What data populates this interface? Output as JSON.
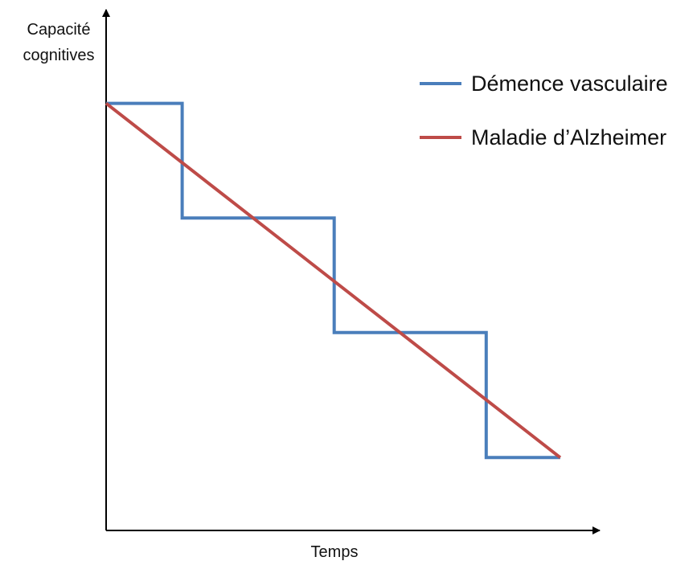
{
  "chart_data": {
    "type": "line",
    "xlabel": "Temps",
    "ylabel": [
      "Capacité",
      "cognitives"
    ],
    "xlim": [
      0,
      100
    ],
    "ylim": [
      0,
      100
    ],
    "grid": false,
    "legend_position": "top-right",
    "series": [
      {
        "name": "Démence vasculaire",
        "color": "#4a7ebb",
        "step": true,
        "x": [
          0,
          15.4,
          15.4,
          46.2,
          46.2,
          77.0,
          77.0,
          92.0
        ],
        "y": [
          82,
          82,
          60,
          60,
          38,
          38,
          14,
          14
        ]
      },
      {
        "name": "Maladie d’Alzheimer",
        "color": "#be4b48",
        "step": false,
        "x": [
          0,
          92.0
        ],
        "y": [
          82,
          14
        ]
      }
    ]
  }
}
